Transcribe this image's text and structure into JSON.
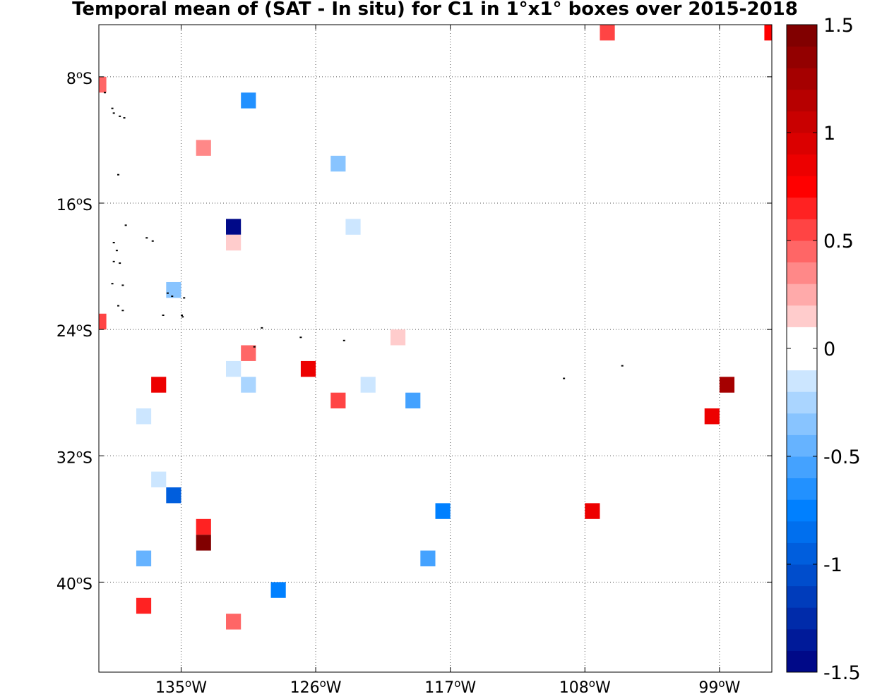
{
  "title": "Temporal mean of (SAT - In situ) for C1 in 1°x1° boxes over 2015-2018",
  "chart_data": {
    "type": "heatmap",
    "title": "Temporal mean of (SAT - In situ) for C1 in 1°x1° boxes over 2015-2018",
    "x_axis": {
      "ticks": [
        -135,
        -126,
        -117,
        -108,
        -99
      ],
      "tick_labels": [
        "135",
        "126",
        "117",
        "108",
        "99"
      ],
      "tick_suffix": "W",
      "range": [
        -140.5,
        -95.5
      ]
    },
    "y_axis": {
      "ticks": [
        -8,
        -16,
        -24,
        -32,
        -40
      ],
      "tick_labels": [
        "8",
        "16",
        "24",
        "32",
        "40"
      ],
      "tick_suffix": "S",
      "range": [
        -45.7,
        -4.7
      ]
    },
    "grid": true,
    "colorbar": {
      "range": [
        -1.5,
        1.5
      ],
      "ticks": [
        1.5,
        1,
        0.5,
        0,
        -0.5,
        -1,
        -1.5
      ],
      "tick_labels": [
        "1.5",
        "1",
        "0.5",
        "0",
        "-0.5",
        "-1",
        "-1.5"
      ],
      "n_bins": 30,
      "position": "right"
    },
    "boxes": [
      {
        "lon": -106.5,
        "lat": -5.2,
        "value": 0.55
      },
      {
        "lon": -95.5,
        "lat": -5.2,
        "value": 0.75
      },
      {
        "lon": -140.5,
        "lat": -8.5,
        "value": 0.45
      },
      {
        "lon": -130.5,
        "lat": -9.5,
        "value": -0.65
      },
      {
        "lon": -133.5,
        "lat": -12.5,
        "value": 0.35
      },
      {
        "lon": -124.5,
        "lat": -13.5,
        "value": -0.35
      },
      {
        "lon": -131.5,
        "lat": -17.5,
        "value": -1.45
      },
      {
        "lon": -123.5,
        "lat": -17.5,
        "value": -0.15
      },
      {
        "lon": -131.5,
        "lat": -18.5,
        "value": 0.15
      },
      {
        "lon": -135.5,
        "lat": -21.5,
        "value": -0.35
      },
      {
        "lon": -140.5,
        "lat": -23.5,
        "value": 0.55
      },
      {
        "lon": -120.5,
        "lat": -24.5,
        "value": 0.15
      },
      {
        "lon": -130.5,
        "lat": -25.5,
        "value": 0.45
      },
      {
        "lon": -131.5,
        "lat": -26.5,
        "value": -0.15
      },
      {
        "lon": -126.5,
        "lat": -26.5,
        "value": 0.85
      },
      {
        "lon": -136.5,
        "lat": -27.5,
        "value": 0.85
      },
      {
        "lon": -130.5,
        "lat": -27.5,
        "value": -0.25
      },
      {
        "lon": -122.5,
        "lat": -27.5,
        "value": -0.15
      },
      {
        "lon": -98.5,
        "lat": -27.5,
        "value": 1.25
      },
      {
        "lon": -124.5,
        "lat": -28.5,
        "value": 0.55
      },
      {
        "lon": -119.5,
        "lat": -28.5,
        "value": -0.55
      },
      {
        "lon": -137.5,
        "lat": -29.5,
        "value": -0.15
      },
      {
        "lon": -99.5,
        "lat": -29.5,
        "value": 0.85
      },
      {
        "lon": -136.5,
        "lat": -33.5,
        "value": -0.15
      },
      {
        "lon": -135.5,
        "lat": -34.5,
        "value": -0.95
      },
      {
        "lon": -117.5,
        "lat": -35.5,
        "value": -0.75
      },
      {
        "lon": -107.5,
        "lat": -35.5,
        "value": 0.85
      },
      {
        "lon": -133.5,
        "lat": -36.5,
        "value": 0.65
      },
      {
        "lon": -133.5,
        "lat": -37.5,
        "value": 1.45
      },
      {
        "lon": -137.5,
        "lat": -38.5,
        "value": -0.45
      },
      {
        "lon": -118.5,
        "lat": -38.5,
        "value": -0.55
      },
      {
        "lon": -128.5,
        "lat": -40.5,
        "value": -0.75
      },
      {
        "lon": -137.5,
        "lat": -41.5,
        "value": 0.65
      },
      {
        "lon": -131.5,
        "lat": -42.5,
        "value": 0.45
      }
    ],
    "islands": [
      [
        -140.1,
        -9.0
      ],
      [
        -139.6,
        -10.0
      ],
      [
        -139.5,
        -10.3
      ],
      [
        -139.1,
        -10.5
      ],
      [
        -138.8,
        -10.6
      ],
      [
        -139.2,
        -14.2
      ],
      [
        -138.7,
        -17.4
      ],
      [
        -139.5,
        -18.5
      ],
      [
        -139.3,
        -19.0
      ],
      [
        -137.3,
        -18.2
      ],
      [
        -136.9,
        -18.4
      ],
      [
        -139.5,
        -19.7
      ],
      [
        -139.1,
        -19.8
      ],
      [
        -139.6,
        -21.1
      ],
      [
        -138.9,
        -21.2
      ],
      [
        -135.9,
        -21.7
      ],
      [
        -135.6,
        -21.9
      ],
      [
        -134.8,
        -22.0
      ],
      [
        -139.2,
        -22.5
      ],
      [
        -138.9,
        -22.8
      ],
      [
        -136.2,
        -23.1
      ],
      [
        -134.95,
        -23.1
      ],
      [
        -134.9,
        -23.2
      ],
      [
        -129.6,
        -23.9
      ],
      [
        -127.0,
        -24.5
      ],
      [
        -130.1,
        -25.1
      ],
      [
        -124.1,
        -24.7
      ],
      [
        -109.4,
        -27.1
      ],
      [
        -105.5,
        -26.3
      ]
    ]
  },
  "colors": {
    "negative_end": "#00007f",
    "negative_mid": "#0080ff",
    "zero": "#ffffff",
    "positive_mid": "#ff0000",
    "positive_end": "#780000",
    "grid": "#555555",
    "land": "#000000"
  }
}
